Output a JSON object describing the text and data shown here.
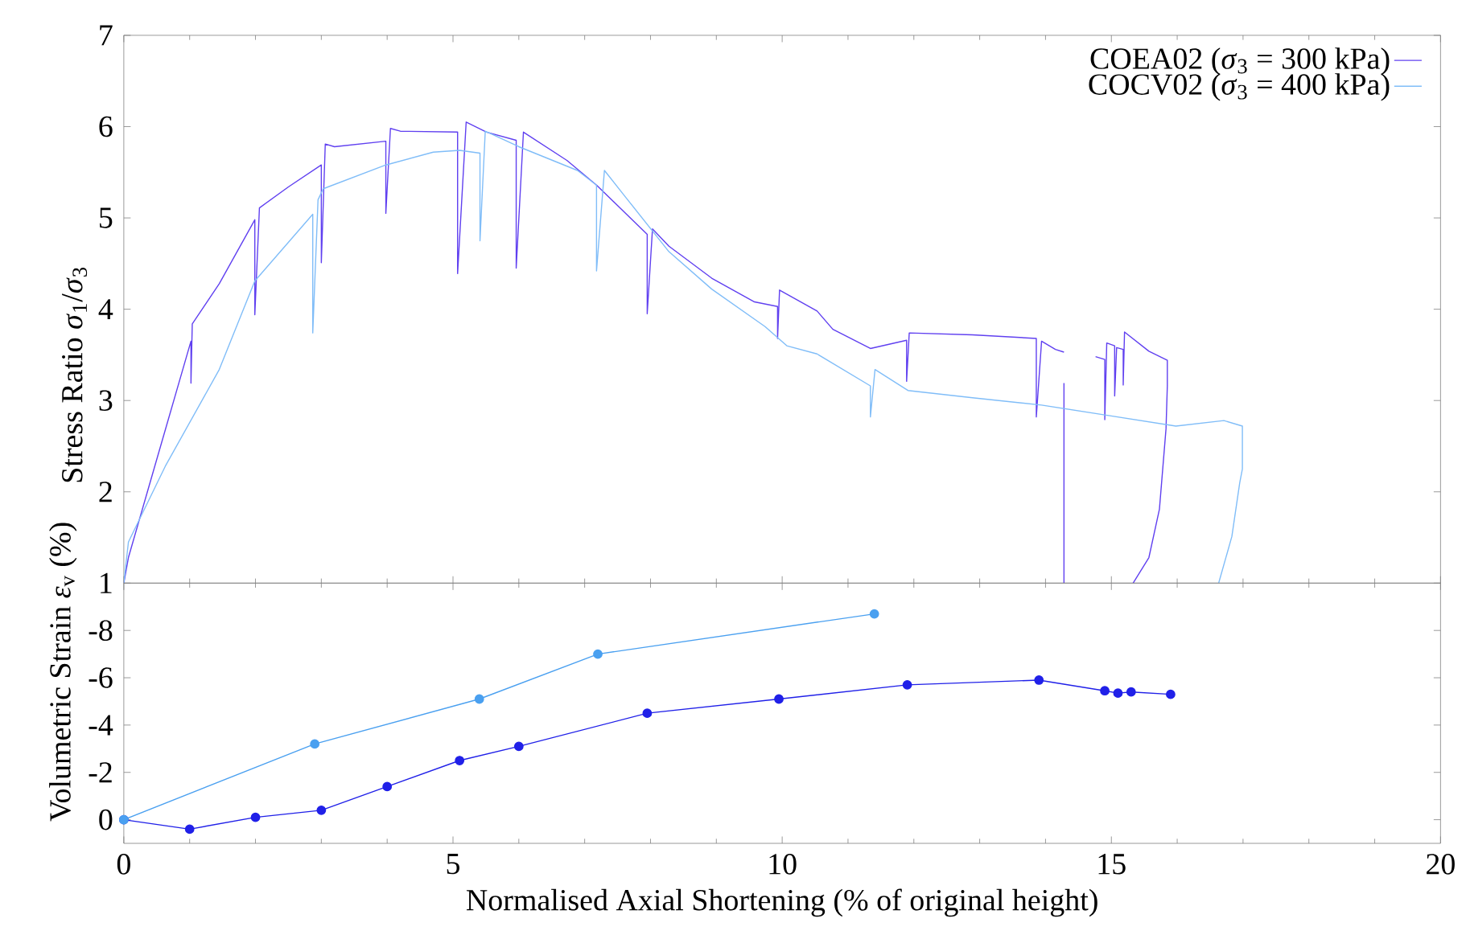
{
  "chart_data": [
    {
      "type": "line",
      "ylabel": "Stress Ratio *σ*$_{1}$/*σ*$_{3}$",
      "xlim": [
        0,
        20
      ],
      "xticks": [
        0,
        5,
        10,
        15,
        20
      ],
      "ylim": [
        1,
        7
      ],
      "yticks": [
        1,
        2,
        3,
        4,
        5,
        6,
        7
      ],
      "tick_labels": "y",
      "legend": "top right",
      "marker": "none",
      "line_style": "solid",
      "series": [
        {
          "name": "COEA02 (*σ*$_{3}$ = 300 kPa)",
          "color": "#6040f0",
          "x": [
            0,
            0.07,
            0.47,
            1.02,
            1.02,
            1.04,
            1.45,
            1.99,
            1.99,
            2.06,
            2.5,
            3.0,
            3.0,
            3.06,
            3.2,
            3.98,
            3.98,
            4.05,
            4.2,
            5.07,
            5.07,
            5.2,
            5.51,
            5.96,
            5.96,
            6.07,
            6.73,
            7.18,
            7.95,
            7.95,
            8.03,
            8.28,
            8.93,
            9.58,
            9.93,
            9.93,
            9.96,
            10.53,
            10.77,
            11.34,
            11.89,
            11.89,
            11.93,
            12.89,
            13.86,
            13.86,
            13.94,
            14.15,
            14.28,
            null,
            14.28,
            14.28,
            null,
            14.76,
            14.9,
            14.9,
            14.93,
            15.05,
            15.05,
            15.08,
            15.18,
            15.18,
            15.2,
            15.57,
            15.85,
            15.85,
            15.83,
            15.73,
            15.57,
            15.33
          ],
          "values": [
            1.0,
            1.28,
            2.28,
            3.65,
            3.19,
            3.84,
            4.28,
            4.98,
            3.94,
            5.11,
            5.34,
            5.58,
            4.51,
            5.81,
            5.78,
            5.84,
            5.05,
            5.98,
            5.95,
            5.94,
            4.39,
            6.05,
            5.94,
            5.85,
            4.45,
            5.94,
            5.63,
            5.36,
            4.82,
            3.95,
            4.88,
            4.69,
            4.34,
            4.08,
            4.03,
            3.68,
            4.21,
            3.98,
            3.78,
            3.57,
            3.66,
            3.21,
            3.74,
            3.72,
            3.68,
            2.82,
            3.65,
            3.56,
            3.53,
            null,
            3.19,
            1.0,
            null,
            3.48,
            3.45,
            2.79,
            3.63,
            3.6,
            3.05,
            3.58,
            3.56,
            3.17,
            3.75,
            3.54,
            3.44,
            3.16,
            2.69,
            1.81,
            1.28,
            1.0
          ]
        },
        {
          "name": "COCV02 (*σ*$_{3}$ = 400 kPa)",
          "color": "#80bdf8",
          "x": [
            0,
            0.07,
            0.63,
            1.45,
            1.99,
            2.87,
            2.87,
            2.95,
            3.03,
            3.98,
            4.7,
            5.1,
            5.41,
            5.41,
            5.49,
            6.0,
            6.89,
            7.18,
            7.18,
            7.3,
            7.63,
            8.28,
            8.93,
            9.74,
            10.07,
            10.53,
            11.34,
            11.34,
            11.41,
            11.91,
            12.89,
            13.94,
            14.92,
            15.98,
            16.71,
            16.99,
            16.99,
            16.95,
            16.83,
            16.63
          ],
          "values": [
            1.0,
            1.45,
            2.28,
            3.34,
            4.31,
            5.04,
            3.74,
            5.2,
            5.32,
            5.58,
            5.72,
            5.74,
            5.71,
            4.75,
            5.95,
            5.78,
            5.52,
            5.36,
            4.42,
            5.52,
            5.22,
            4.63,
            4.22,
            3.81,
            3.6,
            3.51,
            3.16,
            2.82,
            3.34,
            3.11,
            3.03,
            2.95,
            2.84,
            2.72,
            2.78,
            2.72,
            2.25,
            2.1,
            1.51,
            1.0
          ]
        }
      ]
    },
    {
      "type": "line",
      "xlabel": "Normalised Axial Shortening (% of original height)",
      "ylabel": "Volumetric Strain *ε*$_{v}$ (%)",
      "xlim": [
        0,
        20
      ],
      "xticks": [
        0,
        5,
        10,
        15,
        20
      ],
      "ylim": [
        1,
        -10
      ],
      "yticks": [
        -8,
        -6,
        -4,
        -2,
        0
      ],
      "marker": "circle",
      "line_style": "solid",
      "series": [
        {
          "color": "#2020e8",
          "x": [
            0,
            1.0,
            2.0,
            3.0,
            4.0,
            5.1,
            6.0,
            7.95,
            9.95,
            11.9,
            13.9,
            14.9,
            15.1,
            15.3,
            15.9
          ],
          "values": [
            0,
            0.4,
            -0.1,
            -0.4,
            -1.4,
            -2.5,
            -3.1,
            -4.5,
            -5.1,
            -5.7,
            -5.9,
            -5.45,
            -5.35,
            -5.4,
            -5.3
          ]
        },
        {
          "color": "#4aa0f0",
          "x": [
            0,
            2.9,
            5.4,
            7.2,
            11.4
          ],
          "values": [
            0,
            -3.2,
            -5.1,
            -7.0,
            -8.7
          ]
        }
      ]
    }
  ]
}
